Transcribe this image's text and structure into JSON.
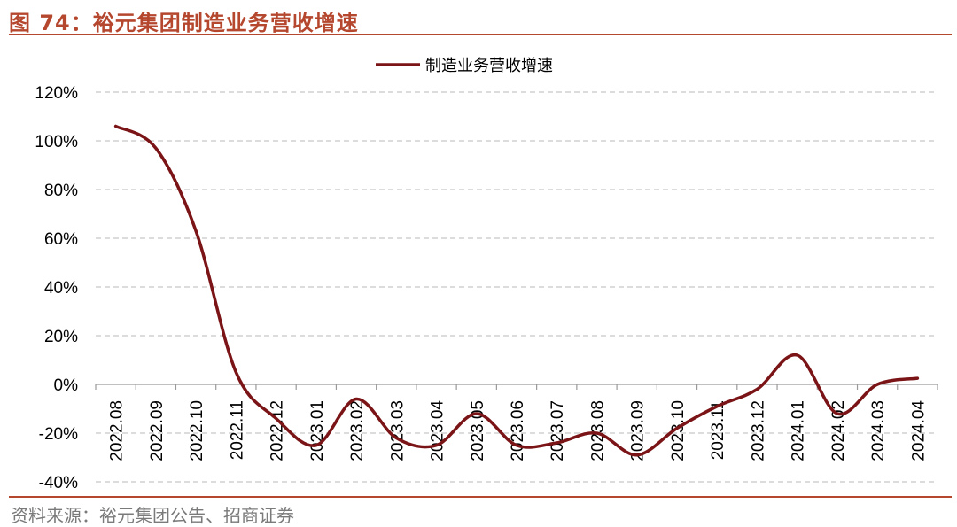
{
  "figure": {
    "title": "图 74：裕元集团制造业务营收增速",
    "source": "资料来源：裕元集团公告、招商证券"
  },
  "chart_data": {
    "type": "line",
    "x": [
      "2022.08",
      "2022.09",
      "2022.10",
      "2022.11",
      "2022.12",
      "2023.01",
      "2023.02",
      "2023.03",
      "2023.04",
      "2023.05",
      "2023.06",
      "2023.07",
      "2023.08",
      "2023.09",
      "2023.10",
      "2023.11",
      "2023.12",
      "2024.01",
      "2024.02",
      "2024.03",
      "2024.04"
    ],
    "series": [
      {
        "name": "制造业务营收增速",
        "color": "#7b1416",
        "values": [
          106,
          97,
          63,
          5,
          -14,
          -25,
          -6,
          -22,
          -25,
          -12,
          -25,
          -24,
          -20,
          -29,
          -18,
          -9,
          -2,
          12,
          -12,
          0,
          2.5
        ]
      }
    ],
    "yticks": [
      "120%",
      "100%",
      "80%",
      "60%",
      "40%",
      "20%",
      "0%",
      "-20%",
      "-40%"
    ],
    "ylim": [
      -40,
      120
    ],
    "grid": true,
    "grid_style": "dashed",
    "legend_position": "top-center",
    "smooth": true
  }
}
